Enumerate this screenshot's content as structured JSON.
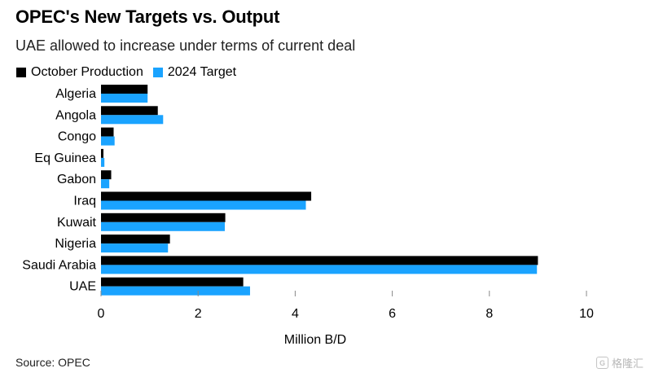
{
  "header": {
    "title": "OPEC's New Targets vs. Output",
    "subtitle": "UAE allowed to increase under terms of current deal"
  },
  "legend": {
    "items": [
      {
        "label": "October Production",
        "color": "#000000"
      },
      {
        "label": "2024 Target",
        "color": "#1aa3ff"
      }
    ]
  },
  "footer": {
    "source": "Source: OPEC"
  },
  "watermark": {
    "badge": "G",
    "text": "格隆汇"
  },
  "colors": {
    "production": "#000000",
    "target": "#1aa3ff",
    "tick": "#888888"
  },
  "chart_data": {
    "type": "bar",
    "orientation": "horizontal",
    "title": "OPEC's New Targets vs. Output",
    "subtitle": "UAE allowed to increase under terms of current deal",
    "categories": [
      "Algeria",
      "Angola",
      "Congo",
      "Eq Guinea",
      "Gabon",
      "Iraq",
      "Kuwait",
      "Nigeria",
      "Saudi Arabia",
      "UAE"
    ],
    "series": [
      {
        "name": "October Production",
        "values": [
          0.96,
          1.17,
          0.26,
          0.05,
          0.21,
          4.33,
          2.56,
          1.42,
          9.0,
          2.93
        ]
      },
      {
        "name": "2024 Target",
        "values": [
          0.96,
          1.28,
          0.28,
          0.07,
          0.17,
          4.22,
          2.55,
          1.38,
          8.98,
          3.07
        ]
      }
    ],
    "xlabel": "Million B/D",
    "ylabel": "",
    "xlim": [
      0,
      10
    ],
    "xticks": [
      0,
      2,
      4,
      6,
      8,
      10
    ],
    "grid": false,
    "legend_position": "top-left"
  }
}
